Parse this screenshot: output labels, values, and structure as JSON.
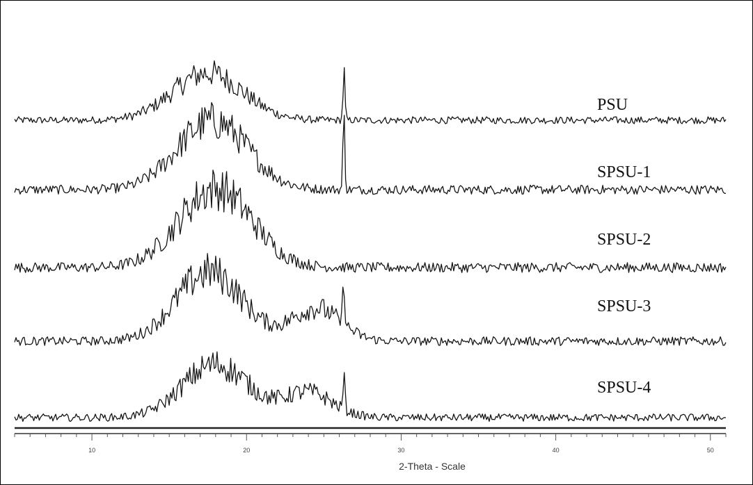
{
  "chart_data": {
    "type": "line",
    "title": "",
    "xlabel": "2-Theta - Scale",
    "ylabel": "",
    "xlim": [
      5,
      51
    ],
    "x_ticks": [
      10,
      20,
      30,
      40,
      50
    ],
    "x_tick_labels": [
      "10",
      "20",
      "30",
      "40",
      "50"
    ],
    "grid": false,
    "legend": "right",
    "y_axis_printed": false,
    "series": [
      {
        "name": "PSU",
        "peaks": [
          {
            "center": 17.5,
            "width": 3.2,
            "height": 0.8
          }
        ],
        "sharp_peaks": [
          {
            "center": 26.3,
            "height": 0.78
          }
        ],
        "baseline": 0.0
      },
      {
        "name": "SPSU-1",
        "peaks": [
          {
            "center": 17.8,
            "width": 3.2,
            "height": 0.9
          }
        ],
        "sharp_peaks": [
          {
            "center": 26.3,
            "height": 0.9
          }
        ],
        "baseline": 0.0
      },
      {
        "name": "SPSU-2",
        "peaks": [
          {
            "center": 18.0,
            "width": 3.3,
            "height": 0.95
          }
        ],
        "sharp_peaks": [],
        "baseline": 0.0
      },
      {
        "name": "SPSU-3",
        "peaks": [
          {
            "center": 17.6,
            "width": 3.0,
            "height": 0.95
          },
          {
            "center": 24.5,
            "width": 2.2,
            "height": 0.45
          }
        ],
        "sharp_peaks": [
          {
            "center": 26.3,
            "height": 0.65
          }
        ],
        "baseline": 0.0
      },
      {
        "name": "SPSU-4",
        "peaks": [
          {
            "center": 18.0,
            "width": 3.0,
            "height": 0.85
          },
          {
            "center": 24.0,
            "width": 2.2,
            "height": 0.4
          }
        ],
        "sharp_peaks": [
          {
            "center": 26.3,
            "height": 0.5
          }
        ],
        "baseline": 0.0
      }
    ]
  }
}
